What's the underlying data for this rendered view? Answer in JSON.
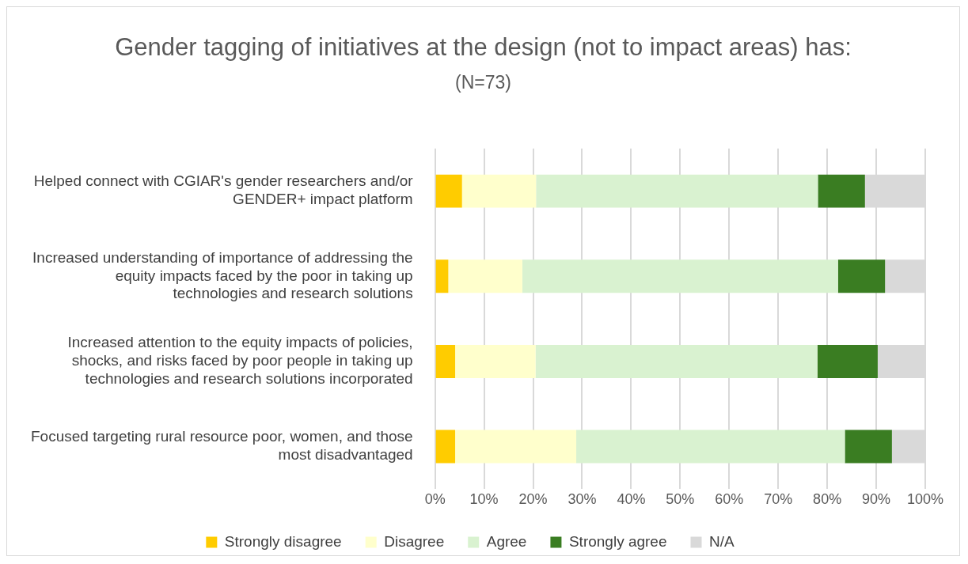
{
  "chart_data": {
    "type": "bar",
    "orientation": "horizontal",
    "stacked": true,
    "title": "Gender tagging of initiatives at the design (not to impact areas) has:",
    "subtitle": "(N=73)",
    "categories": [
      "Helped connect with CGIAR's gender researchers and/or GENDER+ impact platform",
      "Increased understanding of importance of addressing the equity impacts faced by the poor in taking up technologies and research solutions",
      "Increased attention to the equity impacts of policies, shocks, and risks faced by poor people in taking up technologies and research solutions incorporated",
      "Focused targeting rural resource poor, women, and those most disadvantaged"
    ],
    "series": [
      {
        "name": "Strongly disagree",
        "color": "#ffcc00",
        "values": [
          5.5,
          2.7,
          4.1,
          4.1
        ]
      },
      {
        "name": "Disagree",
        "color": "#ffffcc",
        "values": [
          15.1,
          15.1,
          16.4,
          24.7
        ]
      },
      {
        "name": "Agree",
        "color": "#d9f2d0",
        "values": [
          57.5,
          64.4,
          57.5,
          54.8
        ]
      },
      {
        "name": "Strongly agree",
        "color": "#3a7d22",
        "values": [
          9.6,
          9.6,
          12.3,
          9.6
        ]
      },
      {
        "name": "N/A",
        "color": "#d9d9d9",
        "values": [
          12.3,
          8.2,
          9.6,
          6.8
        ]
      }
    ],
    "xlim": [
      0,
      100
    ],
    "xticks": [
      {
        "value": 0,
        "label": "0%"
      },
      {
        "value": 10,
        "label": "10%"
      },
      {
        "value": 20,
        "label": "20%"
      },
      {
        "value": 30,
        "label": "30%"
      },
      {
        "value": 40,
        "label": "40%"
      },
      {
        "value": 50,
        "label": "50%"
      },
      {
        "value": 60,
        "label": "60%"
      },
      {
        "value": 70,
        "label": "70%"
      },
      {
        "value": 80,
        "label": "80%"
      },
      {
        "value": 90,
        "label": "90%"
      },
      {
        "value": 100,
        "label": "100%"
      }
    ],
    "grid": "x",
    "legend": "bottom"
  }
}
